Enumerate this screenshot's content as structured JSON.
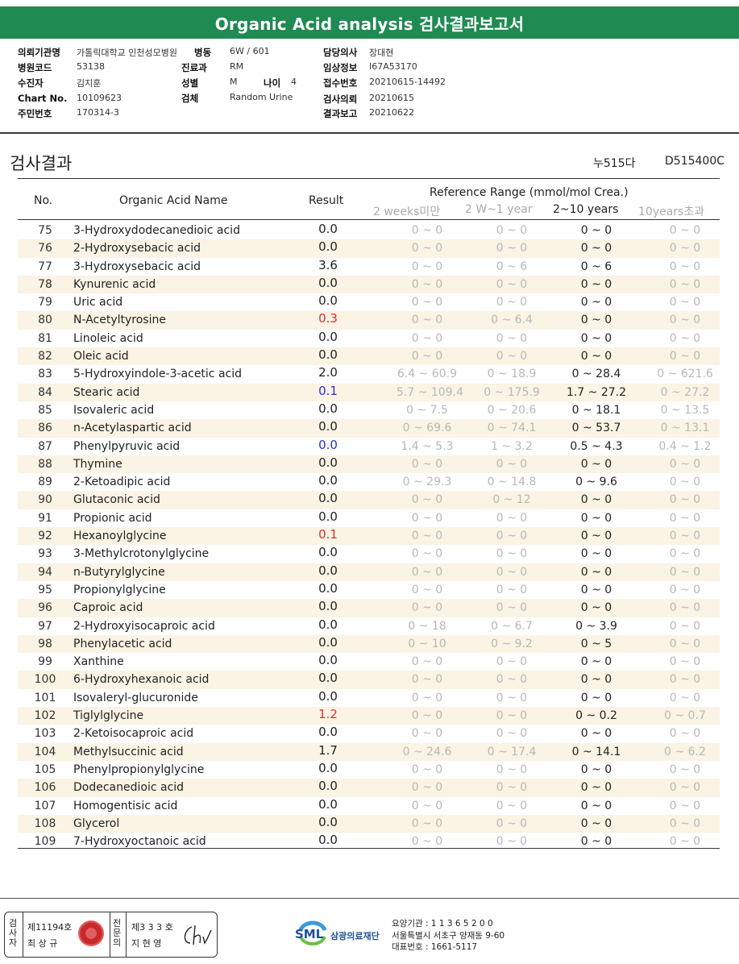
{
  "title": "Organic Acid analysis 검사결과보고서",
  "info": {
    "inst_label": "의뢰기관명",
    "inst_value": "가톨릭대학교 인천성모병원",
    "ward_label": "병동",
    "ward_value": "6W / 601",
    "doctor_label": "담당의사",
    "doctor_value": "장대현",
    "hospcode_label": "병원코드",
    "hospcode_value": "53138",
    "dept_label": "진료과",
    "dept_value": "RM",
    "clinical_label": "임상정보",
    "clinical_value": "I67A53170",
    "collector_label": "수진자",
    "collector_value": "김지훈",
    "sex_label": "성별",
    "sex_value": "M",
    "age_label": "나이",
    "age_value": "4",
    "receipt_label": "접수번호",
    "receipt_value": "20210615-14492",
    "chart_label": "Chart No.",
    "chart_value": "10109623",
    "specimen_label": "검체",
    "specimen_value": "Random Urine",
    "request_label": "검사의뢰",
    "request_value": "20210615",
    "idnum_label": "주민번호",
    "idnum_value": "170314-3",
    "report_label": "결과보고",
    "report_value": "20210622"
  },
  "section_title": "검사결과",
  "code1": "누515다",
  "code2": "D515400C",
  "table": {
    "col_no": "No.",
    "col_name": "Organic Acid Name",
    "col_result": "Result",
    "ref_header": "Reference Range (mmol/mol Crea.)",
    "ref_cols": [
      "2 weeks미만",
      "2 W~1 year",
      "2~10 years",
      "10years초과"
    ],
    "rows": [
      {
        "no": "75",
        "name": "3-Hydroxydodecanedioic acid",
        "result": "0.0",
        "rc": "n",
        "r1": "0 ~ 0",
        "r2": "0 ~ 0",
        "r3": "0 ~ 0",
        "r4": "0 ~ 0"
      },
      {
        "no": "76",
        "name": "2-Hydroxysebacic acid",
        "result": "0.0",
        "rc": "n",
        "r1": "0 ~ 0",
        "r2": "0 ~ 0",
        "r3": "0 ~ 0",
        "r4": "0 ~ 0"
      },
      {
        "no": "77",
        "name": "3-Hydroxysebacic acid",
        "result": "3.6",
        "rc": "n",
        "r1": "0 ~ 0",
        "r2": "0 ~ 6",
        "r3": "0 ~ 6",
        "r4": "0 ~ 0"
      },
      {
        "no": "78",
        "name": "Kynurenic acid",
        "result": "0.0",
        "rc": "n",
        "r1": "0 ~ 0",
        "r2": "0 ~ 0",
        "r3": "0 ~ 0",
        "r4": "0 ~ 0"
      },
      {
        "no": "79",
        "name": "Uric acid",
        "result": "0.0",
        "rc": "n",
        "r1": "0 ~ 0",
        "r2": "0 ~ 0",
        "r3": "0 ~ 0",
        "r4": "0 ~ 0"
      },
      {
        "no": "80",
        "name": "N-Acetyltyrosine",
        "result": "0.3",
        "rc": "r",
        "r1": "0 ~ 0",
        "r2": "0 ~ 6.4",
        "r3": "0 ~ 0",
        "r4": "0 ~ 0"
      },
      {
        "no": "81",
        "name": "Linoleic acid",
        "result": "0.0",
        "rc": "n",
        "r1": "0 ~ 0",
        "r2": "0 ~ 0",
        "r3": "0 ~ 0",
        "r4": "0 ~ 0"
      },
      {
        "no": "82",
        "name": "Oleic acid",
        "result": "0.0",
        "rc": "n",
        "r1": "0 ~ 0",
        "r2": "0 ~ 0",
        "r3": "0 ~ 0",
        "r4": "0 ~ 0"
      },
      {
        "no": "83",
        "name": "5-Hydroxyindole-3-acetic acid",
        "result": "2.0",
        "rc": "n",
        "r1": "6.4 ~ 60.9",
        "r2": "0 ~ 18.9",
        "r3": "0 ~ 28.4",
        "r4": "0 ~ 621.6"
      },
      {
        "no": "84",
        "name": "Stearic acid",
        "result": "0.1",
        "rc": "b",
        "r1": "5.7 ~ 109.4",
        "r2": "0 ~ 175.9",
        "r3": "1.7 ~ 27.2",
        "r4": "0 ~ 27.2"
      },
      {
        "no": "85",
        "name": "Isovaleric acid",
        "result": "0.0",
        "rc": "n",
        "r1": "0 ~ 7.5",
        "r2": "0 ~ 20.6",
        "r3": "0 ~ 18.1",
        "r4": "0 ~ 13.5"
      },
      {
        "no": "86",
        "name": "n-Acetylaspartic acid",
        "result": "0.0",
        "rc": "n",
        "r1": "0 ~ 69.6",
        "r2": "0 ~ 74.1",
        "r3": "0 ~ 53.7",
        "r4": "0 ~ 13.1"
      },
      {
        "no": "87",
        "name": "Phenylpyruvic acid",
        "result": "0.0",
        "rc": "b",
        "r1": "1.4 ~ 5.3",
        "r2": "1 ~ 3.2",
        "r3": "0.5 ~ 4.3",
        "r4": "0.4 ~ 1.2"
      },
      {
        "no": "88",
        "name": "Thymine",
        "result": "0.0",
        "rc": "n",
        "r1": "0 ~ 0",
        "r2": "0 ~ 0",
        "r3": "0 ~ 0",
        "r4": "0 ~ 0"
      },
      {
        "no": "89",
        "name": "2-Ketoadipic acid",
        "result": "0.0",
        "rc": "n",
        "r1": "0 ~ 29.3",
        "r2": "0 ~ 14.8",
        "r3": "0 ~ 9.6",
        "r4": "0 ~ 0"
      },
      {
        "no": "90",
        "name": "Glutaconic acid",
        "result": "0.0",
        "rc": "n",
        "r1": "0 ~ 0",
        "r2": "0 ~ 12",
        "r3": "0 ~ 0",
        "r4": "0 ~ 0"
      },
      {
        "no": "91",
        "name": "Propionic acid",
        "result": "0.0",
        "rc": "n",
        "r1": "0 ~ 0",
        "r2": "0 ~ 0",
        "r3": "0 ~ 0",
        "r4": "0 ~ 0"
      },
      {
        "no": "92",
        "name": "Hexanoylglycine",
        "result": "0.1",
        "rc": "r",
        "r1": "0 ~ 0",
        "r2": "0 ~ 0",
        "r3": "0 ~ 0",
        "r4": "0 ~ 0"
      },
      {
        "no": "93",
        "name": "3-Methylcrotonylglycine",
        "result": "0.0",
        "rc": "n",
        "r1": "0 ~ 0",
        "r2": "0 ~ 0",
        "r3": "0 ~ 0",
        "r4": "0 ~ 0"
      },
      {
        "no": "94",
        "name": "n-Butyrylglycine",
        "result": "0.0",
        "rc": "n",
        "r1": "0 ~ 0",
        "r2": "0 ~ 0",
        "r3": "0 ~ 0",
        "r4": "0 ~ 0"
      },
      {
        "no": "95",
        "name": "Propionylglycine",
        "result": "0.0",
        "rc": "n",
        "r1": "0 ~ 0",
        "r2": "0 ~ 0",
        "r3": "0 ~ 0",
        "r4": "0 ~ 0"
      },
      {
        "no": "96",
        "name": "Caproic acid",
        "result": "0.0",
        "rc": "n",
        "r1": "0 ~ 0",
        "r2": "0 ~ 0",
        "r3": "0 ~ 0",
        "r4": "0 ~ 0"
      },
      {
        "no": "97",
        "name": "2-Hydroxyisocaproic acid",
        "result": "0.0",
        "rc": "n",
        "r1": "0 ~ 18",
        "r2": "0 ~ 6.7",
        "r3": "0 ~ 3.9",
        "r4": "0 ~ 0"
      },
      {
        "no": "98",
        "name": "Phenylacetic acid",
        "result": "0.0",
        "rc": "n",
        "r1": "0 ~ 10",
        "r2": "0 ~ 9.2",
        "r3": "0 ~ 5",
        "r4": "0 ~ 0"
      },
      {
        "no": "99",
        "name": "Xanthine",
        "result": "0.0",
        "rc": "n",
        "r1": "0 ~ 0",
        "r2": "0 ~ 0",
        "r3": "0 ~ 0",
        "r4": "0 ~ 0"
      },
      {
        "no": "100",
        "name": "6-Hydroxyhexanoic acid",
        "result": "0.0",
        "rc": "n",
        "r1": "0 ~ 0",
        "r2": "0 ~ 0",
        "r3": "0 ~ 0",
        "r4": "0 ~ 0"
      },
      {
        "no": "101",
        "name": "Isovaleryl-glucuronide",
        "result": "0.0",
        "rc": "n",
        "r1": "0 ~ 0",
        "r2": "0 ~ 0",
        "r3": "0 ~ 0",
        "r4": "0 ~ 0"
      },
      {
        "no": "102",
        "name": "Tiglylglycine",
        "result": "1.2",
        "rc": "r",
        "r1": "0 ~ 0",
        "r2": "0 ~ 0",
        "r3": "0 ~ 0.2",
        "r4": "0 ~ 0.7"
      },
      {
        "no": "103",
        "name": "2-Ketoisocaproic acid",
        "result": "0.0",
        "rc": "n",
        "r1": "0 ~ 0",
        "r2": "0 ~ 0",
        "r3": "0 ~ 0",
        "r4": "0 ~ 0"
      },
      {
        "no": "104",
        "name": "Methylsuccinic acid",
        "result": "1.7",
        "rc": "n",
        "r1": "0 ~ 24.6",
        "r2": "0 ~ 17.4",
        "r3": "0 ~ 14.1",
        "r4": "0 ~ 6.2"
      },
      {
        "no": "105",
        "name": "Phenylpropionylglycine",
        "result": "0.0",
        "rc": "n",
        "r1": "0 ~ 0",
        "r2": "0 ~ 0",
        "r3": "0 ~ 0",
        "r4": "0 ~ 0"
      },
      {
        "no": "106",
        "name": "Dodecanedioic acid",
        "result": "0.0",
        "rc": "n",
        "r1": "0 ~ 0",
        "r2": "0 ~ 0",
        "r3": "0 ~ 0",
        "r4": "0 ~ 0"
      },
      {
        "no": "107",
        "name": "Homogentisic acid",
        "result": "0.0",
        "rc": "n",
        "r1": "0 ~ 0",
        "r2": "0 ~ 0",
        "r3": "0 ~ 0",
        "r4": "0 ~ 0"
      },
      {
        "no": "108",
        "name": "Glycerol",
        "result": "0.0",
        "rc": "n",
        "r1": "0 ~ 0",
        "r2": "0 ~ 0",
        "r3": "0 ~ 0",
        "r4": "0 ~ 0"
      },
      {
        "no": "109",
        "name": "7-Hydroxyoctanoic acid",
        "result": "0.0",
        "rc": "n",
        "r1": "0 ~ 0",
        "r2": "0 ~ 0",
        "r3": "0 ~ 0",
        "r4": "0 ~ 0"
      }
    ]
  },
  "footer": {
    "sign_label1": "검사자",
    "sign_id1": "제11194호",
    "sign_name1": "최 상 규",
    "sign_label2": "전문의",
    "sign_id2": "제3 3 3 호",
    "sign_name2": "지 현 영",
    "logo_text": "SML",
    "org_name": "삼광의료재단",
    "addr_line1": "요양기관 : 1 1 3 6 5 2 0 0",
    "addr_line2": "서울특별시 서초구 양재동 9-60",
    "addr_line3": "대표번호 : 1661-5117"
  },
  "colors": {
    "brand_green": "#1f8a52",
    "alt_row": "#fbf3e4",
    "result_high": "#e03030",
    "result_low": "#2233cc"
  }
}
